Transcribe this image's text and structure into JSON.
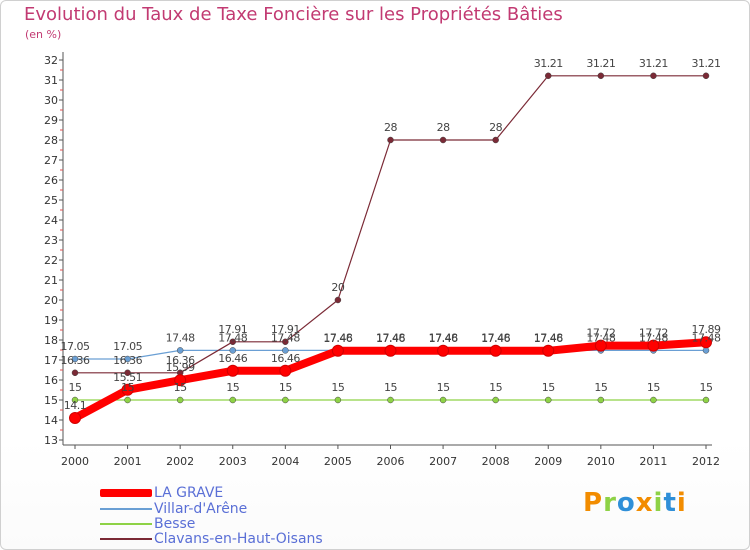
{
  "chart_data": {
    "type": "line",
    "title": "Evolution du Taux de Taxe Foncière sur les Propriétés Bâties",
    "ylabel": "(en %)",
    "xlabel": "",
    "x": [
      "2000",
      "2001",
      "2002",
      "2003",
      "2004",
      "2005",
      "2006",
      "2007",
      "2008",
      "2009",
      "2010",
      "2011",
      "2012"
    ],
    "ylim": [
      13,
      32
    ],
    "yticks": [
      "13",
      "14",
      "15",
      "16",
      "17",
      "18",
      "19",
      "20",
      "21",
      "22",
      "23",
      "24",
      "25",
      "26",
      "27",
      "28",
      "29",
      "30",
      "31",
      "32"
    ],
    "grid": false,
    "legend_position": "bottom-left",
    "series": [
      {
        "name": "LA GRAVE",
        "color": "#ff0000",
        "values": [
          14.1,
          15.51,
          15.99,
          16.46,
          16.46,
          17.46,
          17.46,
          17.46,
          17.46,
          17.46,
          17.72,
          17.72,
          17.89
        ],
        "labels": [
          "14.1",
          "15.51",
          "15.99",
          "16.46",
          "16.46",
          "17.46",
          "17.46",
          "17.46",
          "17.46",
          "17.46",
          "17.72",
          "17.72",
          "17.89"
        ]
      },
      {
        "name": "Villar-d'Arêne",
        "color": "#6a9fd4",
        "values": [
          17.05,
          17.05,
          17.48,
          17.48,
          17.48,
          17.48,
          17.48,
          17.48,
          17.48,
          17.48,
          17.48,
          17.48,
          17.48
        ],
        "labels": [
          "17.05",
          "17.05",
          "17.48",
          "17.48",
          "17.48",
          "17.48",
          "17.48",
          "17.48",
          "17.48",
          "17.48",
          "17.48",
          "17.48",
          "17.48"
        ]
      },
      {
        "name": "Besse",
        "color": "#8ed246",
        "values": [
          15,
          15,
          15,
          15,
          15,
          15,
          15,
          15,
          15,
          15,
          15,
          15,
          15
        ],
        "labels": [
          "15",
          "15",
          "15",
          "15",
          "15",
          "15",
          "15",
          "15",
          "15",
          "15",
          "15",
          "15",
          "15"
        ]
      },
      {
        "name": "Clavans-en-Haut-Oisans",
        "color": "#7b2a36",
        "values": [
          16.36,
          16.36,
          16.36,
          17.91,
          17.91,
          20,
          28,
          28,
          28,
          31.21,
          31.21,
          31.21,
          31.21
        ],
        "labels": [
          "16.36",
          "16.36",
          "16.36",
          "17.91",
          "17.91",
          "20",
          "28",
          "28",
          "28",
          "31.21",
          "31.21",
          "31.21",
          "31.21"
        ]
      }
    ]
  },
  "logo": {
    "letters": [
      "P",
      "r",
      "o",
      "x",
      "i",
      "t",
      "i"
    ],
    "colors": [
      "#f28c00",
      "#8ed246",
      "#2f8fd8",
      "#f28c00",
      "#8ed246",
      "#2f8fd8",
      "#f28c00"
    ]
  }
}
